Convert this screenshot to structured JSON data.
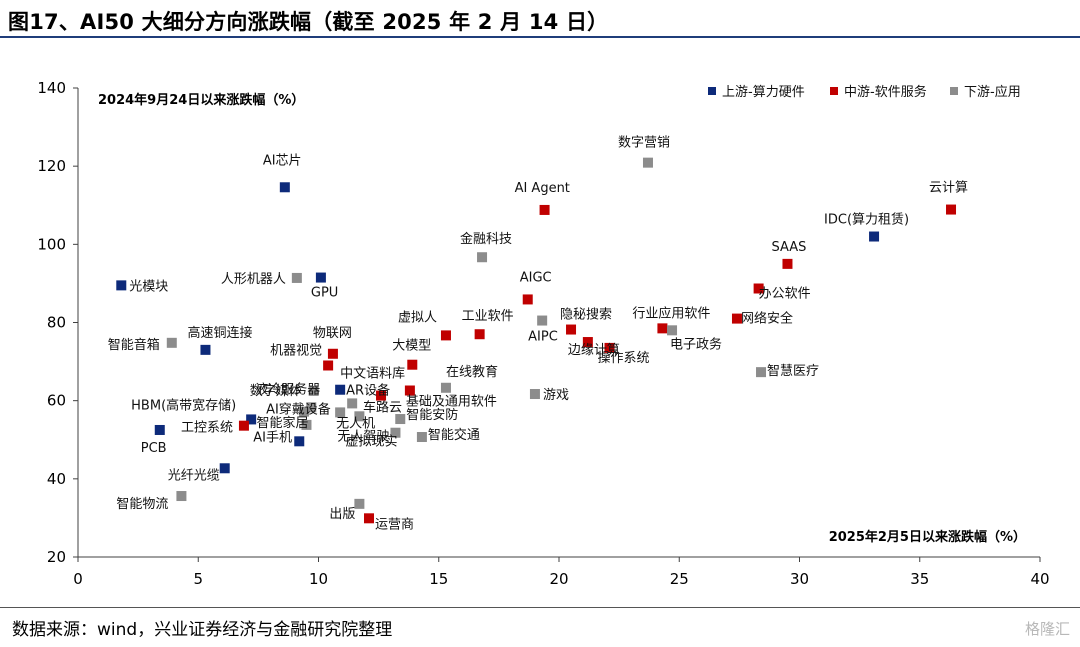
{
  "title": "图17、AI50 大细分方向涨跌幅（截至 2025 年 2 月 14 日）",
  "source": "数据来源：wind，兴业证券经济与金融研究院整理",
  "watermark": "格隆汇",
  "chart_data": {
    "type": "scatter",
    "ylabel": "2024年9月24日以来涨跌幅（%）",
    "xlabel": "2025年2月5日以来涨跌幅（%）",
    "xlim": [
      0,
      40
    ],
    "ylim": [
      20,
      140
    ],
    "xticks": [
      0,
      5,
      10,
      15,
      20,
      25,
      30,
      35,
      40
    ],
    "yticks": [
      20,
      40,
      60,
      80,
      100,
      120,
      140
    ],
    "grid": false,
    "legend_position": "top-right",
    "series": [
      {
        "name": "上游-算力硬件",
        "color": "#0d2a7a",
        "points": [
          {
            "label": "AI芯片",
            "x": 8.6,
            "y": 114.6
          },
          {
            "label": "GPU",
            "x": 10.1,
            "y": 91.5
          },
          {
            "label": "光模块",
            "x": 1.8,
            "y": 89.5
          },
          {
            "label": "高速铜连接",
            "x": 5.3,
            "y": 73.0
          },
          {
            "label": "IDC(算力租赁)",
            "x": 33.1,
            "y": 102.0
          },
          {
            "label": "中文语料库",
            "x": 10.9,
            "y": 62.8
          },
          {
            "label": "HBM(高带宽存储)",
            "x": 7.2,
            "y": 55.2
          },
          {
            "label": "PCB",
            "x": 3.4,
            "y": 52.5
          },
          {
            "label": "AI手机",
            "x": 9.2,
            "y": 49.6
          },
          {
            "label": "光纤光缆",
            "x": 6.1,
            "y": 42.7
          }
        ]
      },
      {
        "name": "中游-软件服务",
        "color": "#c00000",
        "points": [
          {
            "label": "AI Agent",
            "x": 19.4,
            "y": 108.8
          },
          {
            "label": "云计算",
            "x": 36.3,
            "y": 108.9
          },
          {
            "label": "SAAS",
            "x": 29.5,
            "y": 95.0
          },
          {
            "label": "办公软件",
            "x": 28.3,
            "y": 88.7
          },
          {
            "label": "网络安全",
            "x": 27.4,
            "y": 81.0
          },
          {
            "label": "行业应用软件",
            "x": 24.3,
            "y": 78.5
          },
          {
            "label": "AIGC",
            "x": 18.7,
            "y": 85.9
          },
          {
            "label": "隐秘搜索",
            "x": 20.5,
            "y": 78.2
          },
          {
            "label": "边缘计算",
            "x": 21.2,
            "y": 75.0
          },
          {
            "label": "操作系统",
            "x": 22.1,
            "y": 73.5
          },
          {
            "label": "工业软件",
            "x": 16.7,
            "y": 77.0
          },
          {
            "label": "虚拟人",
            "x": 15.3,
            "y": 76.7
          },
          {
            "label": "物联网",
            "x": 10.6,
            "y": 72.0
          },
          {
            "label": "机器视觉",
            "x": 10.4,
            "y": 69.0
          },
          {
            "label": "大模型",
            "x": 13.9,
            "y": 69.2
          },
          {
            "label": "基础及通用软件",
            "x": 13.8,
            "y": 62.6
          },
          {
            "label": "车路云",
            "x": 12.6,
            "y": 61.3
          },
          {
            "label": "工控系统",
            "x": 6.9,
            "y": 53.6
          },
          {
            "label": "运营商",
            "x": 12.1,
            "y": 29.9
          }
        ]
      },
      {
        "name": "下游-应用",
        "color": "#8c8c8c",
        "points": [
          {
            "label": "数字营销",
            "x": 23.7,
            "y": 120.9
          },
          {
            "label": "金融科技",
            "x": 16.8,
            "y": 96.7
          },
          {
            "label": "人形机器人",
            "x": 9.1,
            "y": 91.4
          },
          {
            "label": "智能音箱",
            "x": 3.9,
            "y": 74.8
          },
          {
            "label": "AIPC",
            "x": 19.3,
            "y": 80.5
          },
          {
            "label": "电子政务",
            "x": 24.7,
            "y": 78.0
          },
          {
            "label": "智慧医疗",
            "x": 28.4,
            "y": 67.3
          },
          {
            "label": "在线教育",
            "x": 15.3,
            "y": 63.3
          },
          {
            "label": "游戏",
            "x": 19.0,
            "y": 61.7
          },
          {
            "label": "数字媒体",
            "x": 9.8,
            "y": 62.5
          },
          {
            "label": "液冷服务器",
            "x": 9.7,
            "y": 58.3
          },
          {
            "label": "AI穿戴设备",
            "x": 9.4,
            "y": 57.2
          },
          {
            "label": "智能家居",
            "x": 9.5,
            "y": 53.8
          },
          {
            "label": "无人机",
            "x": 10.9,
            "y": 57.0
          },
          {
            "label": "智能安防",
            "x": 13.4,
            "y": 55.3
          },
          {
            "label": "智能交通",
            "x": 14.3,
            "y": 50.7
          },
          {
            "label": "虚拟现实",
            "x": 13.2,
            "y": 51.8
          },
          {
            "label": "无人驾驶",
            "x": 11.7,
            "y": 56.0
          },
          {
            "label": "AR设备",
            "x": 11.4,
            "y": 59.3
          },
          {
            "label": "智能物流",
            "x": 4.3,
            "y": 35.6
          },
          {
            "label": "出版",
            "x": 11.7,
            "y": 33.6
          }
        ]
      }
    ]
  }
}
